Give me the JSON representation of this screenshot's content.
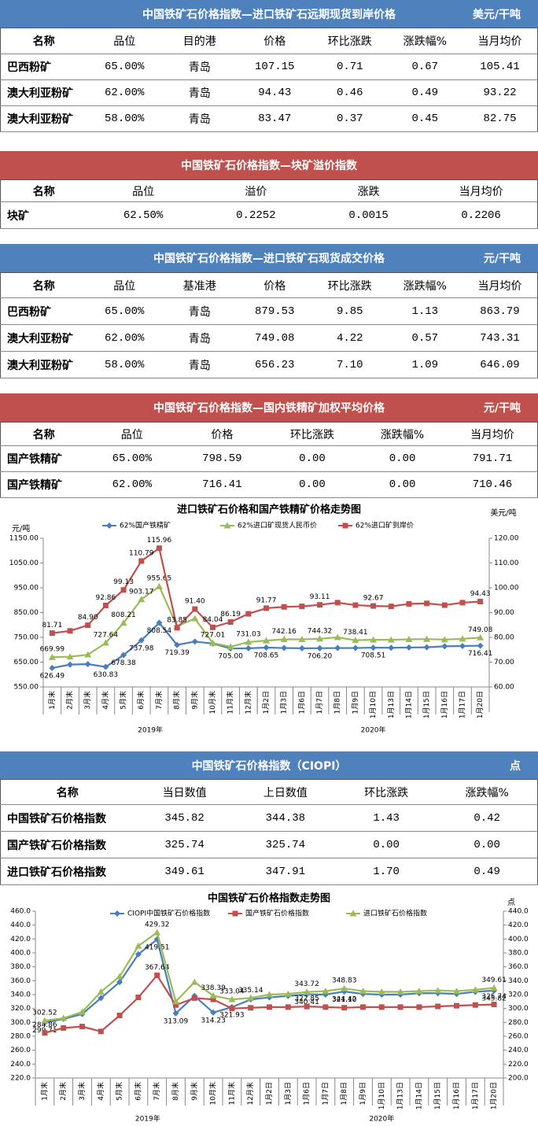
{
  "tables": [
    {
      "title": "中国铁矿石价格指数—进口铁矿石远期现货到岸价格",
      "unit": "美元/干吨",
      "color": "#4f81bd",
      "columns": [
        "名称",
        "品位",
        "目的港",
        "价格",
        "环比涨跌",
        "涨跌幅%",
        "当月均价"
      ],
      "rows": [
        [
          "巴西粉矿",
          "65.00%",
          "青岛",
          "107.15",
          "0.71",
          "0.67",
          "105.41"
        ],
        [
          "澳大利亚粉矿",
          "62.00%",
          "青岛",
          "94.43",
          "0.46",
          "0.49",
          "93.22"
        ],
        [
          "澳大利亚粉矿",
          "58.00%",
          "青岛",
          "83.47",
          "0.37",
          "0.45",
          "82.75"
        ]
      ]
    },
    {
      "title": "中国铁矿石价格指数—块矿溢价指数",
      "color": "#c0504d",
      "columns": [
        "名称",
        "品位",
        "溢价",
        "涨跌",
        "当月均价"
      ],
      "rows": [
        [
          "块矿",
          "62.50%",
          "0.2252",
          "0.0015",
          "0.2206"
        ]
      ]
    },
    {
      "title": "中国铁矿石价格指数—进口铁矿石现货成交价格",
      "unit": "元/干吨",
      "color": "#4f81bd",
      "columns": [
        "名称",
        "品位",
        "基准港",
        "价格",
        "环比涨跌",
        "涨跌幅%",
        "当月均价"
      ],
      "rows": [
        [
          "巴西粉矿",
          "65.00%",
          "青岛",
          "879.53",
          "9.85",
          "1.13",
          "863.79"
        ],
        [
          "澳大利亚粉矿",
          "62.00%",
          "青岛",
          "749.08",
          "4.22",
          "0.57",
          "743.31"
        ],
        [
          "澳大利亚粉矿",
          "58.00%",
          "青岛",
          "656.23",
          "7.10",
          "1.09",
          "646.09"
        ]
      ]
    },
    {
      "title": "中国铁矿石价格指数—国内铁精矿加权平均价格",
      "unit": "元/干吨",
      "color": "#c0504d",
      "columns": [
        "名称",
        "品位",
        "价格",
        "环比涨跌",
        "涨跌幅%",
        "当月均价"
      ],
      "rows": [
        [
          "国产铁精矿",
          "65.00%",
          "798.59",
          "0.00",
          "0.00",
          "791.71"
        ],
        [
          "国产铁精矿",
          "62.00%",
          "716.41",
          "0.00",
          "0.00",
          "710.46"
        ]
      ]
    },
    {
      "title": "中国铁矿石价格指数（CIOPI）",
      "unit": "点",
      "color": "#4f81bd",
      "columns": [
        "名称",
        "当日数值",
        "上日数值",
        "环比涨跌",
        "涨跌幅%"
      ],
      "rows": [
        [
          "中国铁矿石价格指数",
          "345.82",
          "344.38",
          "1.43",
          "0.42"
        ],
        [
          "国产铁矿石价格指数",
          "325.74",
          "325.74",
          "0.00",
          "0.00"
        ],
        [
          "进口铁矿石价格指数",
          "349.61",
          "347.91",
          "1.70",
          "0.49"
        ]
      ]
    }
  ],
  "chart_data": [
    {
      "type": "line",
      "title": "进口铁矿石价格和国产铁精矿价格走势图",
      "y_label": "元/吨",
      "y2_label": "美元/吨",
      "categories": [
        "1月末",
        "2月末",
        "3月末",
        "4月末",
        "5月末",
        "6月末",
        "7月末",
        "8月末",
        "9月末",
        "10月末",
        "11月末",
        "12月末",
        "1月2日",
        "1月3日",
        "1月6日",
        "1月7日",
        "1月8日",
        "1月9日",
        "1月10日",
        "1月13日",
        "1月14日",
        "1月15日",
        "1月16日",
        "1月17日",
        "1月20日"
      ],
      "groups": [
        "2019年",
        "2020年"
      ],
      "ylim": [
        550,
        1150
      ],
      "yticks": [
        {
          "value": 550,
          "label": "550.00"
        },
        {
          "value": 650,
          "label": "650.00"
        },
        {
          "value": 750,
          "label": "750.00"
        },
        {
          "value": 850,
          "label": "850.00"
        },
        {
          "value": 950,
          "label": "950.00"
        },
        {
          "value": 1050,
          "label": "1050.00"
        },
        {
          "value": 1150,
          "label": "1150.00"
        }
      ],
      "y2lim": [
        60,
        120
      ],
      "y2ticks": [
        {
          "value": 60,
          "label": "60.00"
        },
        {
          "value": 70,
          "label": "70.00"
        },
        {
          "value": 80,
          "label": "80.00"
        },
        {
          "value": 90,
          "label": "90.00"
        },
        {
          "value": 100,
          "label": "100.00"
        },
        {
          "value": 110,
          "label": "110.00"
        },
        {
          "value": 120,
          "label": "120.00"
        }
      ],
      "grid": false,
      "series": [
        {
          "name": "62%国产铁精矿",
          "color": "#4a7ebb",
          "marker": "diamond",
          "values": [
            626.49,
            640,
            642,
            630.83,
            678.38,
            737.98,
            808.54,
            719.39,
            733,
            725,
            705.0,
            706,
            708.65,
            707,
            706,
            706.2,
            707,
            707,
            708.51,
            708,
            709,
            710,
            714,
            715,
            716.41
          ],
          "value_labels": [
            "626.49",
            null,
            null,
            "630.83",
            "678.38",
            "737.98",
            "808.54",
            "719.39",
            null,
            null,
            "705.00",
            null,
            "708.65",
            null,
            null,
            "706.20",
            null,
            null,
            "708.51",
            null,
            null,
            null,
            null,
            null,
            "716.41"
          ]
        },
        {
          "name": "62%进口矿现货人民币价",
          "color": "#9bbb59",
          "marker": "triangle",
          "values": [
            669.99,
            672,
            680,
            727.64,
            808.21,
            903.17,
            955.65,
            795,
            826,
            727.01,
            712,
            731.03,
            737,
            742.16,
            742,
            744.32,
            750,
            738.41,
            740,
            740,
            742,
            743,
            741,
            744,
            749.08
          ],
          "value_labels": [
            "669.99",
            null,
            null,
            "727.64",
            "808.21",
            "903.17",
            "955.65",
            null,
            null,
            "727.01",
            null,
            "731.03",
            null,
            "742.16",
            null,
            "744.32",
            null,
            "738.41",
            null,
            null,
            null,
            null,
            null,
            null,
            "749.08"
          ]
        },
        {
          "name": "62%进口矿到岸价",
          "color": "#c0504d",
          "marker": "square",
          "axis": "y2",
          "values": [
            81.71,
            82.6,
            84.9,
            92.86,
            99.13,
            110.79,
            115.96,
            83.85,
            91.4,
            84.04,
            86.19,
            89.5,
            91.77,
            92.3,
            92.5,
            93.11,
            94,
            93,
            92.67,
            92.5,
            93.5,
            93.7,
            93,
            94,
            94.43
          ],
          "value_labels": [
            "81.71",
            null,
            "84.90",
            "92.86",
            "99.13",
            "110.79",
            "115.96",
            "83.85",
            "91.40",
            "84.04",
            "86.19",
            null,
            "91.77",
            null,
            null,
            "93.11",
            null,
            null,
            "92.67",
            null,
            null,
            null,
            null,
            null,
            "94.43"
          ]
        }
      ]
    },
    {
      "type": "line",
      "title": "中国铁矿石价格指数走势图",
      "y2_label": "点",
      "categories": [
        "1月末",
        "2月末",
        "3月末",
        "4月末",
        "5月末",
        "6月末",
        "7月末",
        "8月末",
        "9月末",
        "10月末",
        "11月末",
        "12月末",
        "1月2日",
        "1月3日",
        "1月6日",
        "1月7日",
        "1月8日",
        "1月9日",
        "1月10日",
        "1月13日",
        "1月14日",
        "1月15日",
        "1月16日",
        "1月17日",
        "1月20日"
      ],
      "groups": [
        "2019年",
        "2020年"
      ],
      "ylim": [
        220,
        460
      ],
      "yticks": [
        {
          "value": 220,
          "label": "220.0"
        },
        {
          "value": 240,
          "label": "240.0"
        },
        {
          "value": 260,
          "label": "260.0"
        },
        {
          "value": 280,
          "label": "280.0"
        },
        {
          "value": 300,
          "label": "300.0"
        },
        {
          "value": 320,
          "label": "320.0"
        },
        {
          "value": 340,
          "label": "340.0"
        },
        {
          "value": 360,
          "label": "360.0"
        },
        {
          "value": 380,
          "label": "380.0"
        },
        {
          "value": 400,
          "label": "400.0"
        },
        {
          "value": 420,
          "label": "420.0"
        },
        {
          "value": 440,
          "label": "440.0"
        },
        {
          "value": 460,
          "label": "460.0"
        }
      ],
      "y2lim": [
        200,
        440
      ],
      "y2ticks": [
        {
          "value": 200,
          "label": "200.0"
        },
        {
          "value": 220,
          "label": "220.0"
        },
        {
          "value": 240,
          "label": "240.0"
        },
        {
          "value": 260,
          "label": "260.0"
        },
        {
          "value": 280,
          "label": "280.0"
        },
        {
          "value": 300,
          "label": "300.0"
        },
        {
          "value": 320,
          "label": "320.0"
        },
        {
          "value": 340,
          "label": "340.0"
        },
        {
          "value": 360,
          "label": "360.0"
        },
        {
          "value": 380,
          "label": "380.0"
        },
        {
          "value": 400,
          "label": "400.0"
        },
        {
          "value": 420,
          "label": "420.0"
        },
        {
          "value": 440,
          "label": "440.0"
        }
      ],
      "grid": false,
      "series": [
        {
          "name": "CIOPI中国铁矿石价格指数",
          "color": "#4a7ebb",
          "marker": "diamond",
          "values": [
            299.71,
            305,
            312,
            335,
            358,
            398,
            419.51,
            313.09,
            338,
            314.23,
            321.93,
            333,
            336,
            338,
            340.41,
            340,
            344.42,
            341,
            340,
            340,
            342,
            342,
            341,
            344,
            345.82
          ],
          "value_labels": [
            "299.71",
            null,
            null,
            null,
            null,
            null,
            "419.51",
            "313.09",
            null,
            "314.23",
            "321.93",
            null,
            null,
            null,
            "340.41",
            null,
            "344.42",
            null,
            null,
            null,
            null,
            null,
            null,
            null,
            "345.82"
          ]
        },
        {
          "name": "国产铁矿石价格指数",
          "color": "#c0504d",
          "marker": "square",
          "values": [
            284.86,
            292,
            294,
            287,
            310,
            336,
            367.64,
            325,
            335,
            333,
            320,
            321,
            322,
            322,
            322.85,
            322,
            321.1,
            322,
            322,
            322,
            322,
            323,
            324,
            325,
            325.74
          ],
          "value_labels": [
            "284.86",
            null,
            null,
            null,
            null,
            null,
            "367.64",
            null,
            null,
            null,
            null,
            null,
            null,
            null,
            "322.85",
            null,
            "321.10",
            null,
            null,
            null,
            null,
            null,
            null,
            null,
            "325.74"
          ]
        },
        {
          "name": "进口铁矿石价格指数",
          "color": "#9bbb59",
          "marker": "triangle",
          "values": [
            302.52,
            306,
            315,
            344,
            366,
            410,
            429.32,
            330,
            358,
            338.39,
            333.04,
            335.14,
            340,
            341,
            343.72,
            345,
            348.83,
            345,
            344,
            344,
            345,
            346,
            345,
            347,
            349.61
          ],
          "value_labels": [
            "302.52",
            null,
            null,
            null,
            null,
            null,
            "429.32",
            null,
            null,
            "338.39",
            "333.04",
            "335.14",
            null,
            null,
            "343.72",
            null,
            "348.83",
            null,
            null,
            null,
            null,
            null,
            null,
            null,
            "349.61"
          ]
        }
      ]
    }
  ]
}
